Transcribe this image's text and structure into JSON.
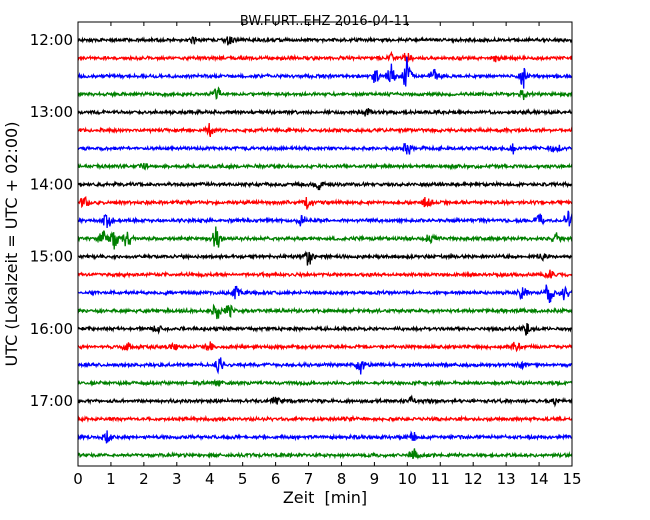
{
  "chart_data": {
    "type": "line",
    "title": "BW.FURT..EHZ 2016-04-11",
    "xlabel": "Zeit  [min]",
    "ylabel": "UTC (Lokalzeit = UTC + 02:00)",
    "xlim": [
      0,
      15
    ],
    "xticks": [
      "0",
      "1",
      "2",
      "3",
      "4",
      "5",
      "6",
      "7",
      "8",
      "9",
      "10",
      "11",
      "12",
      "13",
      "14",
      "15"
    ],
    "ytick_labels": [
      "12:00",
      "13:00",
      "14:00",
      "15:00",
      "16:00",
      "17:00"
    ],
    "rows_per_hour": 4,
    "trace_colors": [
      "#000000",
      "#ff0000",
      "#0000ff",
      "#008000"
    ],
    "traces": [
      {
        "start": "12:00",
        "events": [
          {
            "t": 3.5,
            "amp": 0.5
          },
          {
            "t": 4.6,
            "amp": 0.6
          }
        ]
      },
      {
        "start": "12:15",
        "events": [
          {
            "t": 9.5,
            "amp": 0.5
          },
          {
            "t": 10.0,
            "amp": 0.7
          },
          {
            "t": 12.7,
            "amp": 0.4
          }
        ]
      },
      {
        "start": "12:30",
        "events": [
          {
            "t": 9.0,
            "amp": 1.3
          },
          {
            "t": 9.5,
            "amp": 1.8
          },
          {
            "t": 10.0,
            "amp": 2.2
          },
          {
            "t": 10.8,
            "amp": 0.9
          },
          {
            "t": 13.5,
            "amp": 1.5
          }
        ]
      },
      {
        "start": "12:45",
        "events": [
          {
            "t": 4.2,
            "amp": 0.9
          },
          {
            "t": 13.5,
            "amp": 0.6
          }
        ]
      },
      {
        "start": "13:00",
        "events": [
          {
            "t": 8.8,
            "amp": 0.5
          }
        ]
      },
      {
        "start": "13:15",
        "events": [
          {
            "t": 4.0,
            "amp": 0.8
          }
        ]
      },
      {
        "start": "13:30",
        "events": [
          {
            "t": 10.0,
            "amp": 0.8
          },
          {
            "t": 13.2,
            "amp": 0.6
          },
          {
            "t": 14.5,
            "amp": 0.6
          }
        ]
      },
      {
        "start": "13:45",
        "events": [
          {
            "t": 2.0,
            "amp": 0.4
          }
        ]
      },
      {
        "start": "14:00",
        "events": [
          {
            "t": 7.3,
            "amp": 0.6
          }
        ]
      },
      {
        "start": "14:15",
        "events": [
          {
            "t": 0.2,
            "amp": 0.9
          },
          {
            "t": 7.0,
            "amp": 1.2
          },
          {
            "t": 10.6,
            "amp": 0.8
          }
        ]
      },
      {
        "start": "14:30",
        "events": [
          {
            "t": 0.9,
            "amp": 1.0
          },
          {
            "t": 6.8,
            "amp": 0.7
          },
          {
            "t": 14.0,
            "amp": 1.0
          },
          {
            "t": 14.9,
            "amp": 1.6
          }
        ]
      },
      {
        "start": "14:45",
        "events": [
          {
            "t": 0.8,
            "amp": 2.0
          },
          {
            "t": 1.1,
            "amp": 1.5
          },
          {
            "t": 1.5,
            "amp": 1.2
          },
          {
            "t": 4.2,
            "amp": 1.6
          },
          {
            "t": 10.7,
            "amp": 0.7
          },
          {
            "t": 14.5,
            "amp": 0.7
          }
        ]
      },
      {
        "start": "15:00",
        "events": [
          {
            "t": 7.0,
            "amp": 1.2
          },
          {
            "t": 14.1,
            "amp": 0.5
          }
        ]
      },
      {
        "start": "15:15",
        "events": [
          {
            "t": 14.3,
            "amp": 0.5
          }
        ]
      },
      {
        "start": "15:30",
        "events": [
          {
            "t": 4.8,
            "amp": 0.8
          },
          {
            "t": 13.5,
            "amp": 0.8
          },
          {
            "t": 14.3,
            "amp": 1.4
          },
          {
            "t": 14.8,
            "amp": 1.2
          }
        ]
      },
      {
        "start": "15:45",
        "events": [
          {
            "t": 4.2,
            "amp": 1.2
          },
          {
            "t": 4.6,
            "amp": 0.8
          }
        ]
      },
      {
        "start": "16:00",
        "events": [
          {
            "t": 2.4,
            "amp": 0.7
          },
          {
            "t": 13.6,
            "amp": 1.0
          }
        ]
      },
      {
        "start": "16:15",
        "events": [
          {
            "t": 1.5,
            "amp": 0.6
          },
          {
            "t": 2.9,
            "amp": 0.6
          },
          {
            "t": 4.0,
            "amp": 0.6
          },
          {
            "t": 13.3,
            "amp": 0.6
          }
        ]
      },
      {
        "start": "16:30",
        "events": [
          {
            "t": 4.3,
            "amp": 1.0
          },
          {
            "t": 8.6,
            "amp": 1.1
          },
          {
            "t": 13.5,
            "amp": 0.6
          }
        ]
      },
      {
        "start": "16:45",
        "events": [
          {
            "t": 4.2,
            "amp": 0.5
          }
        ]
      },
      {
        "start": "17:00",
        "events": [
          {
            "t": 6.0,
            "amp": 0.5
          },
          {
            "t": 10.1,
            "amp": 0.6
          },
          {
            "t": 14.5,
            "amp": 0.6
          }
        ]
      },
      {
        "start": "17:15",
        "events": [
          {
            "t": 8.2,
            "amp": 0.4
          }
        ]
      },
      {
        "start": "17:30",
        "events": [
          {
            "t": 0.9,
            "amp": 0.9
          },
          {
            "t": 10.2,
            "amp": 0.7
          }
        ]
      },
      {
        "start": "17:45",
        "events": [
          {
            "t": 10.2,
            "amp": 1.0
          }
        ]
      }
    ]
  }
}
